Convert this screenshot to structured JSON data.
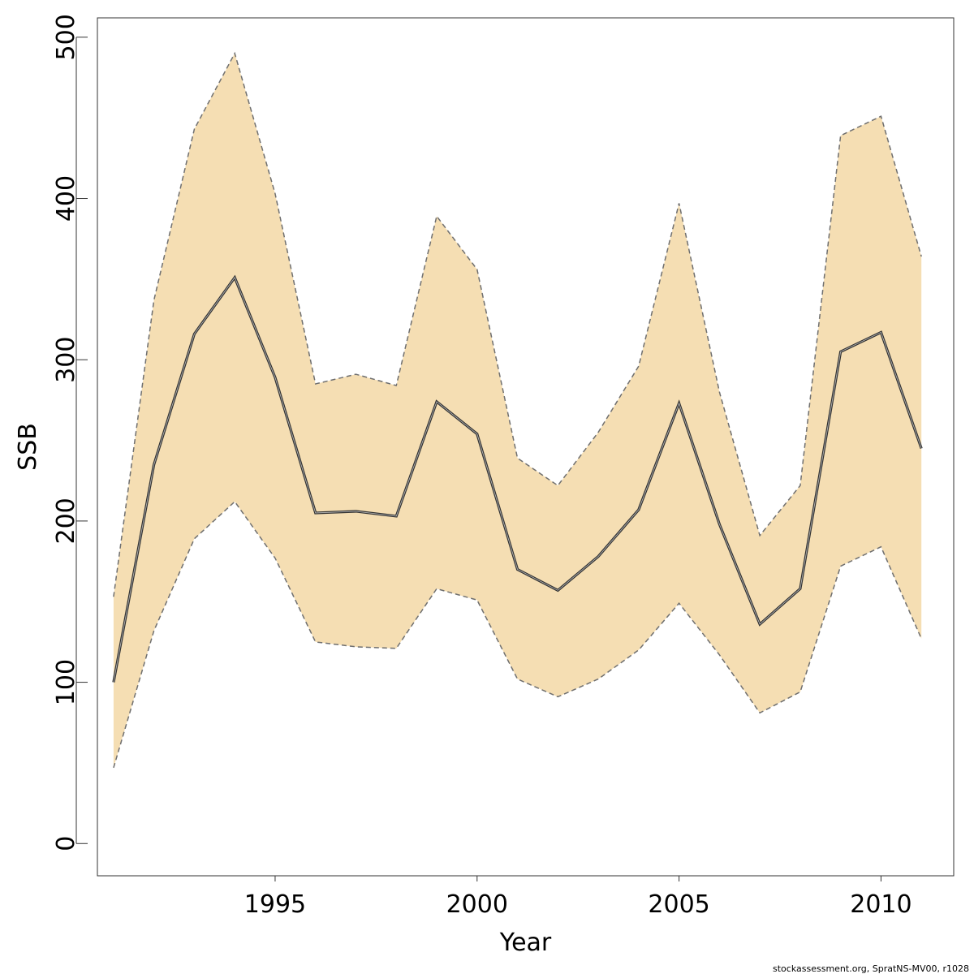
{
  "chart_data": {
    "type": "line",
    "xlabel": "Year",
    "ylabel": "SSB",
    "xlim": [
      1990.6,
      2011.8
    ],
    "ylim": [
      -20,
      512
    ],
    "xticks": [
      1995,
      2000,
      2005,
      2010
    ],
    "yticks": [
      0,
      100,
      200,
      300,
      400,
      500
    ],
    "x": [
      1991,
      1992,
      1993,
      1994,
      1995,
      1996,
      1997,
      1998,
      1999,
      2000,
      2001,
      2002,
      2003,
      2004,
      2005,
      2006,
      2007,
      2008,
      2009,
      2010,
      2011
    ],
    "series": [
      {
        "role": "estimate",
        "values": [
          100,
          235,
          316,
          351,
          289,
          205,
          206,
          203,
          274,
          254,
          170,
          157,
          178,
          207,
          273,
          198,
          136,
          158,
          305,
          317,
          245
        ]
      },
      {
        "role": "upper_bound",
        "values": [
          153,
          337,
          443,
          490,
          403,
          285,
          291,
          284,
          389,
          356,
          239,
          222,
          255,
          296,
          397,
          280,
          191,
          222,
          439,
          451,
          364
        ]
      },
      {
        "role": "lower_bound",
        "values": [
          47,
          132,
          189,
          212,
          177,
          125,
          122,
          121,
          158,
          151,
          102,
          91,
          102,
          120,
          149,
          117,
          81,
          94,
          172,
          184,
          127
        ]
      }
    ],
    "grid": false,
    "colors": {
      "band_fill": "#f5deb3",
      "bound_line": "#6f6f6f",
      "estimate_line": "#333333",
      "axis": "#333333"
    }
  },
  "footer": "stockassessment.org, SpratNS-MV00, r1028"
}
